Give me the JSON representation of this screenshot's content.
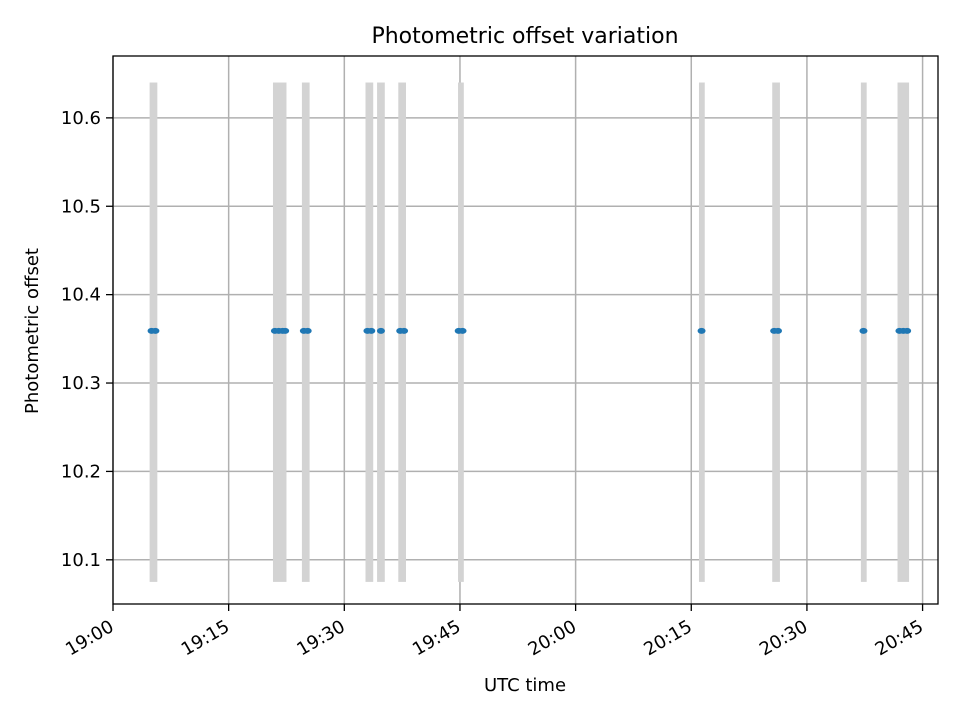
{
  "chart_data": {
    "type": "scatter",
    "title": "Photometric offset variation",
    "xlabel": "UTC time",
    "ylabel": "Photometric offset",
    "xlim": [
      "19:00",
      "20:47"
    ],
    "ylim": [
      10.05,
      10.67
    ],
    "x_ticks": [
      "19:00",
      "19:15",
      "19:30",
      "19:45",
      "20:00",
      "20:15",
      "20:30",
      "20:45"
    ],
    "y_ticks": [
      "10.1",
      "10.2",
      "10.3",
      "10.4",
      "10.5",
      "10.6"
    ],
    "grid": true,
    "shaded_intervals": [
      {
        "start": "19:04:45",
        "end": "19:05:45",
        "ymin": 10.075,
        "ymax": 10.64
      },
      {
        "start": "19:20:45",
        "end": "19:22:30",
        "ymin": 10.075,
        "ymax": 10.64
      },
      {
        "start": "19:24:30",
        "end": "19:25:30",
        "ymin": 10.075,
        "ymax": 10.64
      },
      {
        "start": "19:32:45",
        "end": "19:33:45",
        "ymin": 10.075,
        "ymax": 10.64
      },
      {
        "start": "19:34:15",
        "end": "19:35:15",
        "ymin": 10.075,
        "ymax": 10.64
      },
      {
        "start": "19:37:00",
        "end": "19:38:00",
        "ymin": 10.075,
        "ymax": 10.64
      },
      {
        "start": "19:44:45",
        "end": "19:45:30",
        "ymin": 10.075,
        "ymax": 10.64
      },
      {
        "start": "20:16:00",
        "end": "20:16:45",
        "ymin": 10.075,
        "ymax": 10.64
      },
      {
        "start": "20:25:30",
        "end": "20:26:30",
        "ymin": 10.075,
        "ymax": 10.64
      },
      {
        "start": "20:37:00",
        "end": "20:37:45",
        "ymin": 10.075,
        "ymax": 10.64
      },
      {
        "start": "20:41:45",
        "end": "20:43:15",
        "ymin": 10.075,
        "ymax": 10.64
      }
    ],
    "series": [
      {
        "points": [
          {
            "x": "19:05:00",
            "y": 10.359
          },
          {
            "x": "19:05:30",
            "y": 10.359
          },
          {
            "x": "19:21:00",
            "y": 10.359
          },
          {
            "x": "19:21:30",
            "y": 10.359
          },
          {
            "x": "19:22:00",
            "y": 10.359
          },
          {
            "x": "19:22:20",
            "y": 10.359
          },
          {
            "x": "19:24:45",
            "y": 10.359
          },
          {
            "x": "19:25:15",
            "y": 10.359
          },
          {
            "x": "19:33:00",
            "y": 10.359
          },
          {
            "x": "19:33:30",
            "y": 10.359
          },
          {
            "x": "19:34:45",
            "y": 10.359
          },
          {
            "x": "19:37:15",
            "y": 10.359
          },
          {
            "x": "19:37:45",
            "y": 10.359
          },
          {
            "x": "19:44:50",
            "y": 10.359
          },
          {
            "x": "19:45:20",
            "y": 10.359
          },
          {
            "x": "20:16:20",
            "y": 10.359
          },
          {
            "x": "20:25:45",
            "y": 10.359
          },
          {
            "x": "20:26:15",
            "y": 10.359
          },
          {
            "x": "20:37:20",
            "y": 10.359
          },
          {
            "x": "20:42:00",
            "y": 10.359
          },
          {
            "x": "20:42:30",
            "y": 10.359
          },
          {
            "x": "20:43:00",
            "y": 10.359
          }
        ],
        "color": "#1f77b4"
      }
    ],
    "band_color": "#d3d3d3"
  }
}
